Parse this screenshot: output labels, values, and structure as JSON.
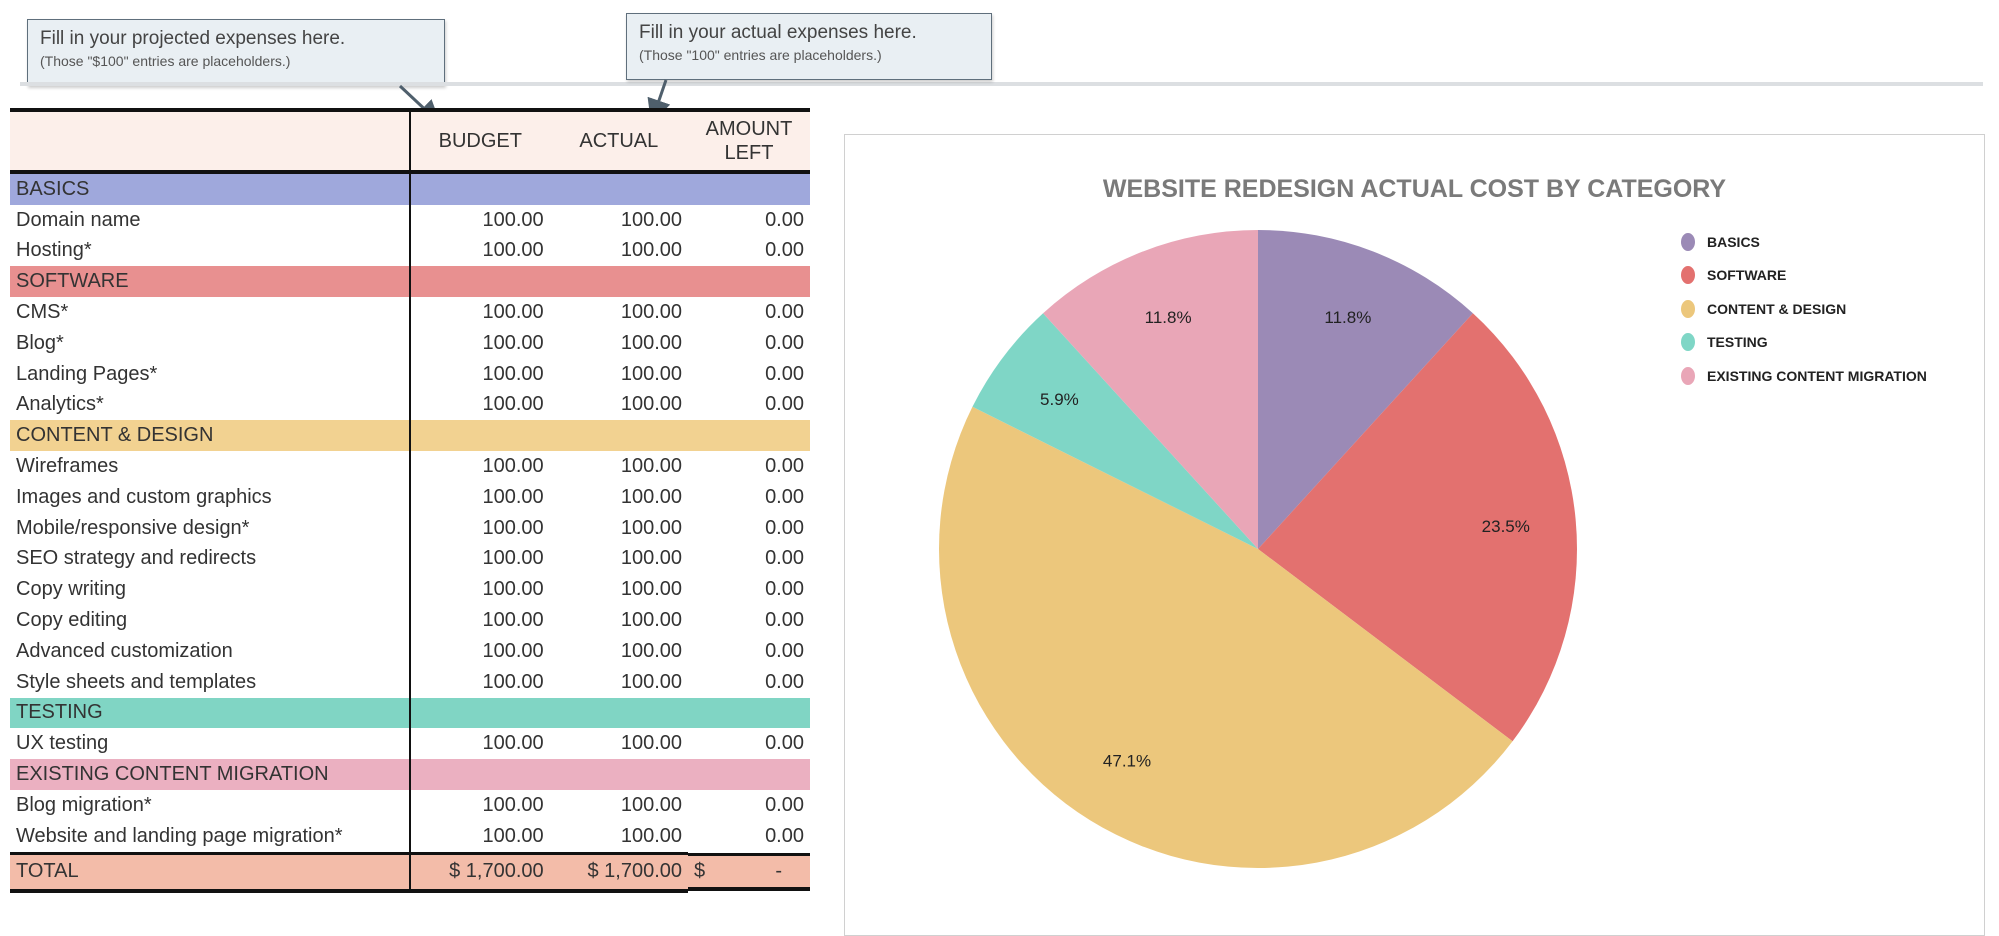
{
  "callouts": [
    {
      "line1": "Fill in your projected expenses here.",
      "line2": "(Those \"$100\" entries are placeholders.)"
    },
    {
      "line1": "Fill in your actual expenses here.",
      "line2": "(Those \"100\" entries are placeholders.)"
    }
  ],
  "table": {
    "headers": [
      "",
      "BUDGET",
      "ACTUAL",
      "AMOUNT LEFT"
    ],
    "sections": [
      {
        "name": "BASICS",
        "color": "#9fa8dc",
        "rows": [
          {
            "item": "Domain name",
            "budget": "100.00",
            "actual": "100.00",
            "left": "0.00"
          },
          {
            "item": "Hosting*",
            "budget": "100.00",
            "actual": "100.00",
            "left": "0.00"
          }
        ]
      },
      {
        "name": "SOFTWARE",
        "color": "#e89090",
        "rows": [
          {
            "item": "CMS*",
            "budget": "100.00",
            "actual": "100.00",
            "left": "0.00"
          },
          {
            "item": "Blog*",
            "budget": "100.00",
            "actual": "100.00",
            "left": "0.00"
          },
          {
            "item": "Landing Pages*",
            "budget": "100.00",
            "actual": "100.00",
            "left": "0.00"
          },
          {
            "item": "Analytics*",
            "budget": "100.00",
            "actual": "100.00",
            "left": "0.00"
          }
        ]
      },
      {
        "name": "CONTENT & DESIGN",
        "color": "#f2d291",
        "rows": [
          {
            "item": "Wireframes",
            "budget": "100.00",
            "actual": "100.00",
            "left": "0.00"
          },
          {
            "item": "Images and custom graphics",
            "budget": "100.00",
            "actual": "100.00",
            "left": "0.00"
          },
          {
            "item": "Mobile/responsive design*",
            "budget": "100.00",
            "actual": "100.00",
            "left": "0.00"
          },
          {
            "item": "SEO strategy and redirects",
            "budget": "100.00",
            "actual": "100.00",
            "left": "0.00"
          },
          {
            "item": "Copy writing",
            "budget": "100.00",
            "actual": "100.00",
            "left": "0.00"
          },
          {
            "item": "Copy editing",
            "budget": "100.00",
            "actual": "100.00",
            "left": "0.00"
          },
          {
            "item": "Advanced customization",
            "budget": "100.00",
            "actual": "100.00",
            "left": "0.00"
          },
          {
            "item": "Style sheets and templates",
            "budget": "100.00",
            "actual": "100.00",
            "left": "0.00"
          }
        ]
      },
      {
        "name": "TESTING",
        "color": "#80d5c4",
        "rows": [
          {
            "item": "UX testing",
            "budget": "100.00",
            "actual": "100.00",
            "left": "0.00"
          }
        ]
      },
      {
        "name": "EXISTING CONTENT MIGRATION",
        "color": "#ebb0c1",
        "rows": [
          {
            "item": "Blog migration*",
            "budget": "100.00",
            "actual": "100.00",
            "left": "0.00"
          },
          {
            "item": "Website and landing page migration*",
            "budget": "100.00",
            "actual": "100.00",
            "left": "0.00"
          }
        ]
      }
    ],
    "total": {
      "label": "TOTAL",
      "budget": "$ 1,700.00",
      "actual": "$ 1,700.00",
      "left_symbol": "$",
      "left": "-",
      "color": "#f3bca9"
    }
  },
  "chart_data": {
    "type": "pie",
    "title": "WEBSITE REDESIGN ACTUAL COST BY CATEGORY",
    "categories": [
      "BASICS",
      "SOFTWARE",
      "CONTENT & DESIGN",
      "TESTING",
      "EXISTING CONTENT MIGRATION"
    ],
    "values": [
      200,
      400,
      800,
      100,
      200
    ],
    "labels": [
      "11.8%",
      "23.5%",
      "47.1%",
      "5.9%",
      "11.8%"
    ],
    "colors": [
      "#9b8ab6",
      "#e3716f",
      "#ecc77c",
      "#7fd6c6",
      "#e9a6b7"
    ],
    "legend": "right"
  }
}
